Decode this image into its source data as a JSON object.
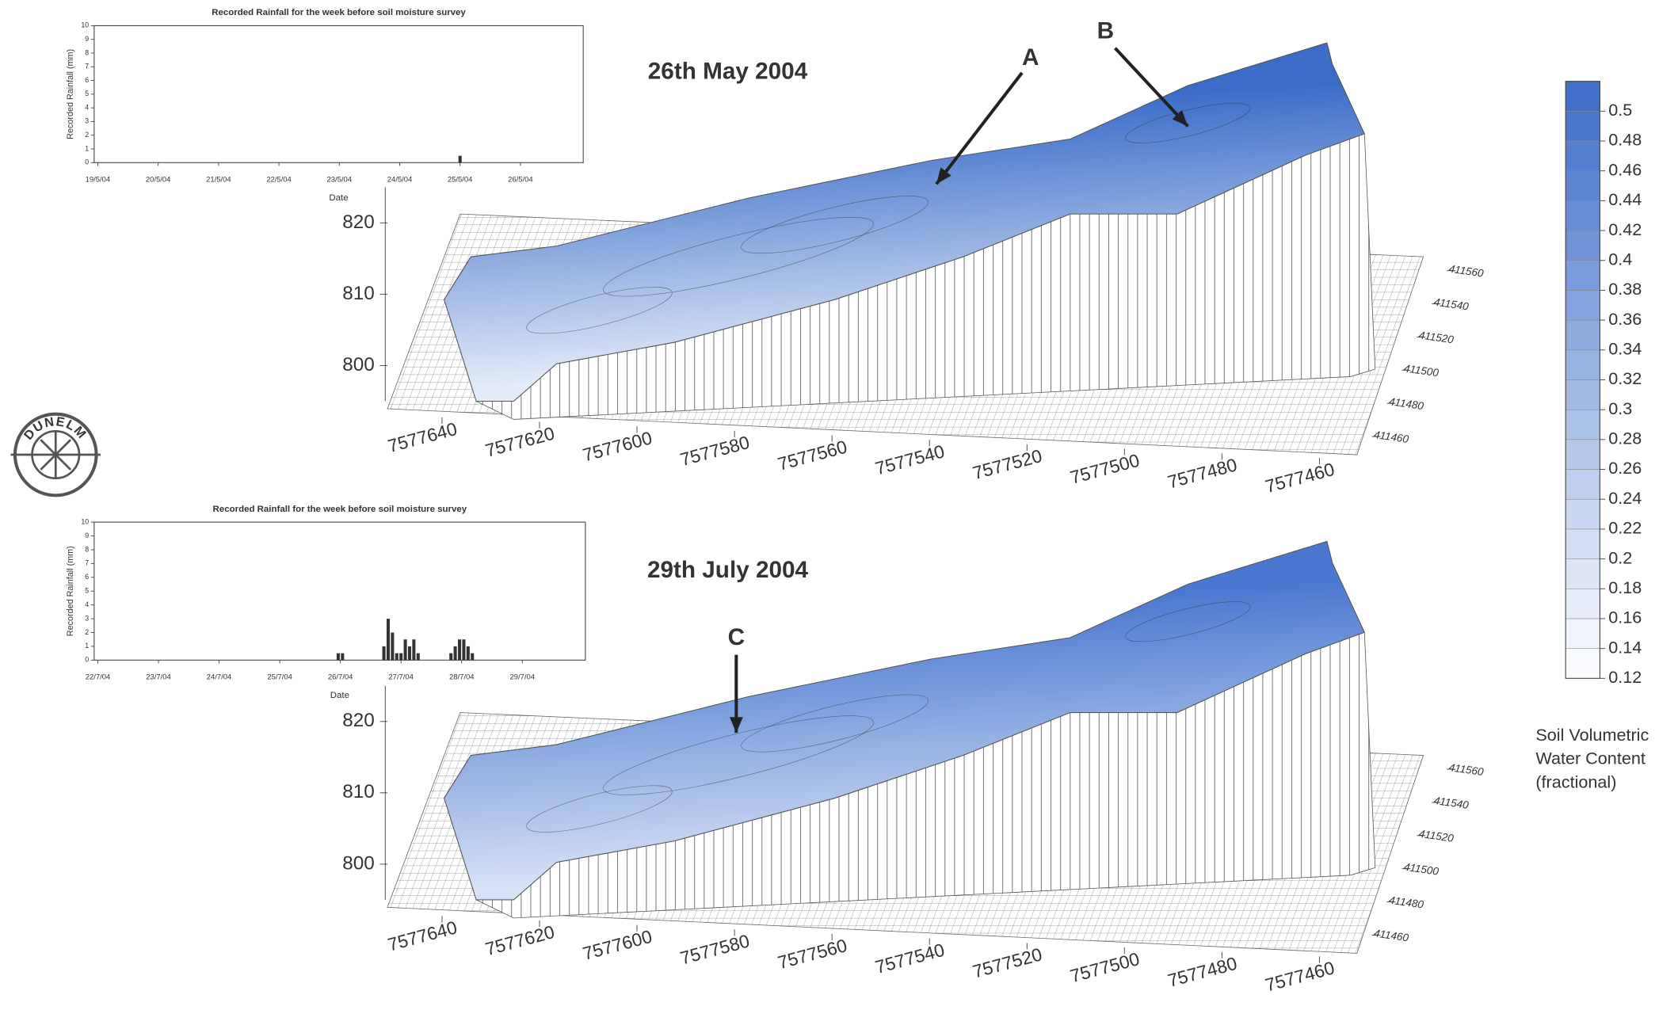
{
  "chart_data": [
    {
      "type": "bar",
      "title": "Recorded Rainfall for the week before soil moisture survey",
      "x_label": "Date",
      "y_label": "Recorded Rainfall (mm)",
      "categories": [
        "19/5/04",
        "20/5/04",
        "21/5/04",
        "22/5/04",
        "23/5/04",
        "24/5/04",
        "25/5/04",
        "26/5/04"
      ],
      "ylim": [
        0,
        10
      ],
      "yticks": [
        0,
        1,
        2,
        3,
        4,
        5,
        6,
        7,
        8,
        9,
        10
      ],
      "x": [
        "25/5/04"
      ],
      "values": [
        0.5
      ],
      "color": "#333333"
    },
    {
      "type": "bar",
      "title": "Recorded Rainfall for the week before soil moisture survey",
      "x_label": "Date",
      "y_label": "Recorded Rainfall (mm)",
      "categories": [
        "22/7/04",
        "23/7/04",
        "24/7/04",
        "25/7/04",
        "26/7/04",
        "27/7/04",
        "28/7/04",
        "29/7/04"
      ],
      "ylim": [
        0,
        10
      ],
      "yticks": [
        0,
        1,
        2,
        3,
        4,
        5,
        6,
        7,
        8,
        9,
        10
      ],
      "x": [
        "26/7/04",
        "26/7/04",
        "27/7/04",
        "27/7/04",
        "27/7/04",
        "27/7/04",
        "27/7/04",
        "27/7/04",
        "27/7/04",
        "27/7/04",
        "27/7/04",
        "28/7/04",
        "28/7/04",
        "28/7/04",
        "28/7/04",
        "28/7/04",
        "28/7/04"
      ],
      "values": [
        0.5,
        0.5,
        1,
        3,
        2,
        0.5,
        0.5,
        1.5,
        1,
        1.5,
        0.5,
        0.5,
        1,
        1.5,
        1.5,
        1,
        0.5
      ],
      "color": "#333333"
    },
    {
      "type": "surface",
      "title": "26th May 2004",
      "zlim": [
        795,
        825
      ],
      "zticks": [
        800,
        810,
        820
      ],
      "xlim": [
        7577650,
        7577450
      ],
      "xticks": [
        7577640,
        7577620,
        7577600,
        7577580,
        7577560,
        7577540,
        7577520,
        7577500,
        7577480,
        7577460
      ],
      "ylim": [
        411450,
        411570
      ],
      "yticks": [
        411460,
        411480,
        411500,
        411520,
        411540,
        411560
      ],
      "annotations": [
        "A",
        "B"
      ],
      "colors": [
        "#3a6cc8",
        "#e4ecf9"
      ]
    },
    {
      "type": "surface",
      "title": "29th July 2004",
      "zlim": [
        795,
        825
      ],
      "zticks": [
        800,
        810,
        820
      ],
      "xlim": [
        7577650,
        7577450
      ],
      "xticks": [
        7577640,
        7577620,
        7577600,
        7577580,
        7577560,
        7577540,
        7577520,
        7577500,
        7577480,
        7577460
      ],
      "ylim": [
        411450,
        411570
      ],
      "yticks": [
        411460,
        411480,
        411500,
        411520,
        411540,
        411560
      ],
      "annotations": [
        "C"
      ],
      "colors": [
        "#4a78d0",
        "#d6e1f5"
      ]
    },
    {
      "type": "colorbar",
      "lim": [
        0.12,
        0.52
      ],
      "ticks": [
        0.12,
        0.14,
        0.16,
        0.18,
        0.2,
        0.22,
        0.24,
        0.26,
        0.28,
        0.3,
        0.32,
        0.34,
        0.36,
        0.38,
        0.4,
        0.42,
        0.44,
        0.46,
        0.48,
        0.5
      ],
      "colors": [
        "#ffffff",
        "#3b6cc8"
      ],
      "label": [
        "Soil Volumetric",
        "Water Content",
        "(fractional)"
      ]
    }
  ],
  "logo": "DUNELM"
}
